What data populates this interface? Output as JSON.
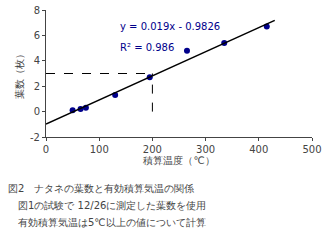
{
  "chart_data": {
    "type": "scatter",
    "xlabel": "積算温度（℃）",
    "ylabel": "葉数（枚）",
    "series": [
      {
        "type": "scatter",
        "marker": "circle",
        "color": "#00008B",
        "x": [
          50,
          65,
          75,
          130,
          195,
          265,
          335,
          415
        ],
        "values": [
          0.1,
          0.2,
          0.3,
          1.3,
          2.7,
          4.8,
          5.4,
          6.7
        ]
      },
      {
        "type": "line",
        "line_style": "solid",
        "color": "#000000",
        "x": [
          0,
          430
        ],
        "values": [
          -0.9826,
          7.1874
        ]
      },
      {
        "type": "line",
        "line_style": "dashed",
        "color": "#000000",
        "x": [
          0,
          200
        ],
        "values": [
          3.0,
          3.0
        ]
      },
      {
        "type": "line",
        "line_style": "dashed",
        "color": "#000000",
        "x": [
          200,
          200
        ],
        "values": [
          0,
          3.0
        ]
      }
    ],
    "annotations": [
      {
        "text": "y = 0.019x - 0.9826",
        "color": "#00008B"
      },
      {
        "text": "R² = 0.986",
        "color": "#00008B"
      }
    ],
    "caption": [
      "図2　ナタネの葉数と有効積算気温の関係",
      "　図1の試験で 12/26に測定した葉数を使用",
      "　有効積算気温は5℃以上の値について計算"
    ],
    "xlim": [
      0,
      500
    ],
    "ylim": [
      -2,
      8
    ],
    "xticks": [
      0,
      100,
      200,
      300,
      400,
      500
    ],
    "yticks": [
      -2,
      0,
      2,
      4,
      6,
      8
    ],
    "grid": false
  }
}
